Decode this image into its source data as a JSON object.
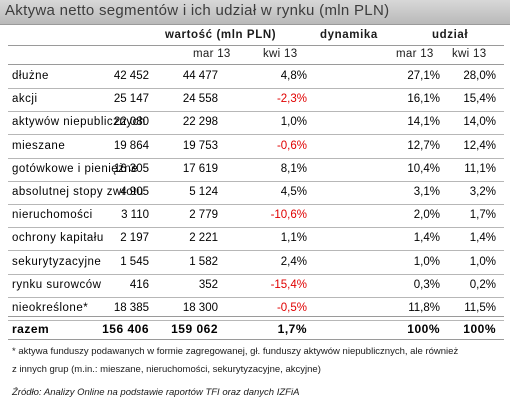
{
  "title": "Aktywa netto segmentów i ich udział w rynku (mln PLN)",
  "headers": {
    "group_value": "wartość (mln PLN)",
    "group_dynamics": "dynamika",
    "group_share": "udział",
    "mar13": "mar 13",
    "kwi13": "kwi 13"
  },
  "rows": [
    {
      "name": "dłużne",
      "v_mar": "42 452",
      "v_kwi": "44 477",
      "dyn": "4,8%",
      "s_mar": "27,1%",
      "s_kwi": "28,0%"
    },
    {
      "name": "akcji",
      "v_mar": "25 147",
      "v_kwi": "24 558",
      "dyn": "-2,3%",
      "s_mar": "16,1%",
      "s_kwi": "15,4%"
    },
    {
      "name": "aktywów niepublicznych",
      "v_mar": "22 080",
      "v_kwi": "22 298",
      "dyn": "1,0%",
      "s_mar": "14,1%",
      "s_kwi": "14,0%"
    },
    {
      "name": "mieszane",
      "v_mar": "19 864",
      "v_kwi": "19 753",
      "dyn": "-0,6%",
      "s_mar": "12,7%",
      "s_kwi": "12,4%"
    },
    {
      "name": "gotówkowe i pieniężne",
      "v_mar": "16 305",
      "v_kwi": "17 619",
      "dyn": "8,1%",
      "s_mar": "10,4%",
      "s_kwi": "11,1%"
    },
    {
      "name": "absolutnej stopy zwrotu",
      "v_mar": "4 905",
      "v_kwi": "5 124",
      "dyn": "4,5%",
      "s_mar": "3,1%",
      "s_kwi": "3,2%"
    },
    {
      "name": "nieruchomości",
      "v_mar": "3 110",
      "v_kwi": "2 779",
      "dyn": "-10,6%",
      "s_mar": "2,0%",
      "s_kwi": "1,7%"
    },
    {
      "name": "ochrony kapitału",
      "v_mar": "2 197",
      "v_kwi": "2 221",
      "dyn": "1,1%",
      "s_mar": "1,4%",
      "s_kwi": "1,4%"
    },
    {
      "name": "sekurytyzacyjne",
      "v_mar": "1 545",
      "v_kwi": "1 582",
      "dyn": "2,4%",
      "s_mar": "1,0%",
      "s_kwi": "1,0%"
    },
    {
      "name": "rynku surowców",
      "v_mar": "416",
      "v_kwi": "352",
      "dyn": "-15,4%",
      "s_mar": "0,3%",
      "s_kwi": "0,2%"
    },
    {
      "name": "nieokreślone*",
      "v_mar": "18 385",
      "v_kwi": "18 300",
      "dyn": "-0,5%",
      "s_mar": "11,8%",
      "s_kwi": "11,5%"
    }
  ],
  "total": {
    "name": "razem",
    "v_mar": "156 406",
    "v_kwi": "159 062",
    "dyn": "1,7%",
    "s_mar": "100%",
    "s_kwi": "100%"
  },
  "footnote_line1": "* aktywa funduszy podawanych w formie zagregowanej, gł. funduszy aktywów niepublicznych, ale również",
  "footnote_line2": "z innych grup (m.in.: mieszane, nieruchomości, sekurytyzacyjne, akcyjne)",
  "source": "Źródło: Analizy Online na podstawie raportów TFI oraz danych IZFiA",
  "colors": {
    "negative": "#e00000",
    "title_bar": "#c8c8c8"
  }
}
